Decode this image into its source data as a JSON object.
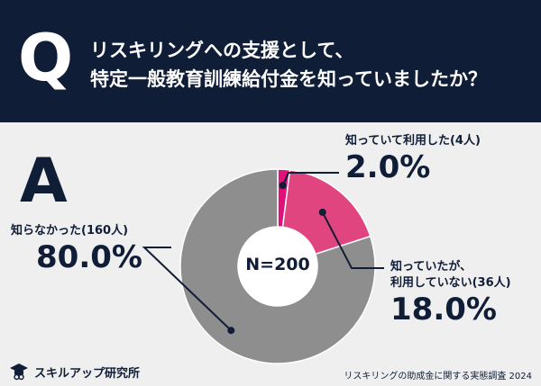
{
  "header": {
    "q_mark": "Q",
    "question_lines": [
      "リスキリングへの支援として、",
      "特定一般教育訓練給付金を知っていましたか？"
    ]
  },
  "answer_mark": "A",
  "chart_data": {
    "type": "pie",
    "donut": true,
    "center_label": "N=200",
    "slices": [
      {
        "label": "知っていて利用した(4人)",
        "count": 4,
        "value": 2.0,
        "value_label": "2.0%",
        "color": "#e0117a"
      },
      {
        "label_lines": [
          "知っていたが、",
          "利用していない(36人)"
        ],
        "count": 36,
        "value": 18.0,
        "value_label": "18.0%",
        "color": "#e0457f"
      },
      {
        "label": "知らなかった(160人)",
        "count": 160,
        "value": 80.0,
        "value_label": "80.0%",
        "color": "#8e8e8e"
      }
    ]
  },
  "footer": {
    "logo_text": "スキルアップ研究所",
    "source": "リスキリングの助成金に関する実態調査 2024"
  },
  "colors": {
    "header_bg": "#0f1d36",
    "page_bg": "#efefef",
    "text": "#0f1d36"
  }
}
